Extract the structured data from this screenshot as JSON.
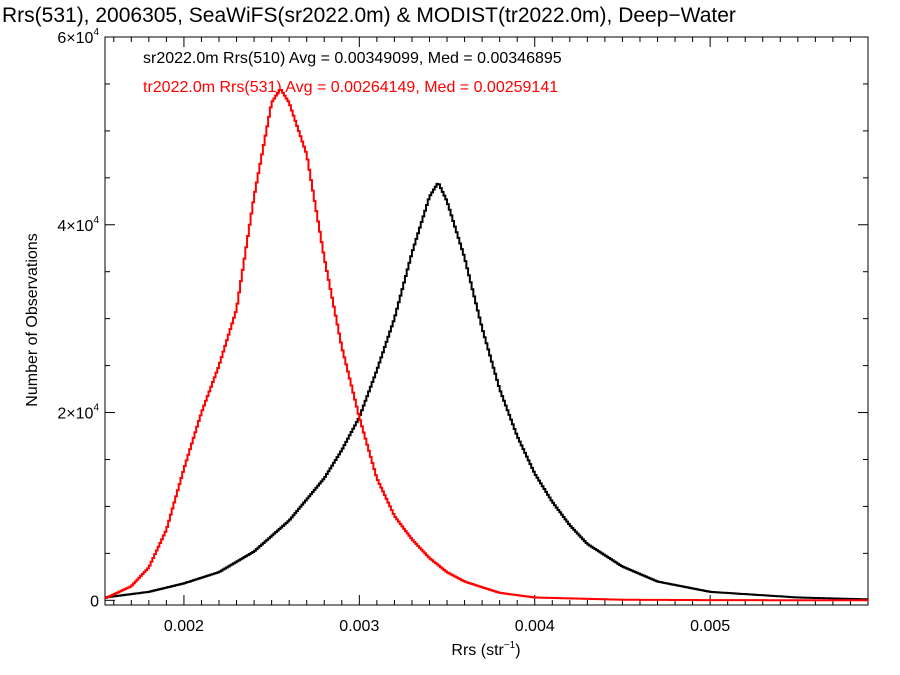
{
  "chart_data": {
    "type": "line",
    "style": "histogram-step",
    "title": "Rrs(531), 2006305, SeaWiFS(sr2022.0m) & MODIST(tr2022.0m), Deep−Water",
    "xlabel": "Rrs (str",
    "xlabel_sup": "−1",
    "xlabel_suffix": ")",
    "ylabel": "Number of Observations",
    "xlim": [
      0.00155,
      0.0059
    ],
    "ylim": [
      -500,
      60000
    ],
    "xticks": [
      {
        "v": 0.002,
        "label": "0.002"
      },
      {
        "v": 0.003,
        "label": "0.003"
      },
      {
        "v": 0.004,
        "label": "0.004"
      },
      {
        "v": 0.005,
        "label": "0.005"
      }
    ],
    "yticks": [
      {
        "v": 0,
        "label": "0",
        "sup": ""
      },
      {
        "v": 20000,
        "label": "2×10",
        "sup": "4"
      },
      {
        "v": 40000,
        "label": "4×10",
        "sup": "4"
      },
      {
        "v": 60000,
        "label": "6×10",
        "sup": "4"
      }
    ],
    "grid": false,
    "annotations": [
      {
        "text": "sr2022.0m Rrs(510) Avg = 0.00349099, Med = 0.00346895",
        "color": "#000000"
      },
      {
        "text": "tr2022.0m Rrs(531) Avg = 0.00264149, Med = 0.00259141",
        "color": "#ff0000"
      }
    ],
    "series": [
      {
        "color": "#000000",
        "points": [
          [
            0.00155,
            300
          ],
          [
            0.0018,
            900
          ],
          [
            0.002,
            1800
          ],
          [
            0.0022,
            3000
          ],
          [
            0.0024,
            5200
          ],
          [
            0.0026,
            8500
          ],
          [
            0.0028,
            13000
          ],
          [
            0.0029,
            16000
          ],
          [
            0.003,
            19500
          ],
          [
            0.0031,
            24500
          ],
          [
            0.0032,
            30000
          ],
          [
            0.0033,
            37000
          ],
          [
            0.0034,
            43000
          ],
          [
            0.00345,
            44500
          ],
          [
            0.0035,
            42500
          ],
          [
            0.0036,
            36500
          ],
          [
            0.0037,
            29000
          ],
          [
            0.0038,
            22500
          ],
          [
            0.0039,
            17500
          ],
          [
            0.004,
            13500
          ],
          [
            0.0041,
            10500
          ],
          [
            0.0042,
            8000
          ],
          [
            0.0043,
            6000
          ],
          [
            0.0045,
            3600
          ],
          [
            0.0047,
            2000
          ],
          [
            0.005,
            900
          ],
          [
            0.0055,
            300
          ],
          [
            0.0059,
            100
          ]
        ]
      },
      {
        "color": "#ff0000",
        "points": [
          [
            0.00155,
            200
          ],
          [
            0.0017,
            1500
          ],
          [
            0.0018,
            3500
          ],
          [
            0.0019,
            7500
          ],
          [
            0.002,
            14000
          ],
          [
            0.0021,
            20000
          ],
          [
            0.0022,
            25000
          ],
          [
            0.0023,
            31000
          ],
          [
            0.0024,
            43000
          ],
          [
            0.0025,
            53000
          ],
          [
            0.00255,
            54500
          ],
          [
            0.0026,
            53000
          ],
          [
            0.0027,
            47500
          ],
          [
            0.0028,
            36500
          ],
          [
            0.0029,
            27000
          ],
          [
            0.003,
            19500
          ],
          [
            0.0031,
            13000
          ],
          [
            0.0032,
            9000
          ],
          [
            0.0033,
            6500
          ],
          [
            0.0034,
            4500
          ],
          [
            0.0035,
            3000
          ],
          [
            0.0036,
            2000
          ],
          [
            0.0038,
            800
          ],
          [
            0.004,
            300
          ],
          [
            0.0045,
            60
          ],
          [
            0.005,
            20
          ],
          [
            0.0059,
            0
          ]
        ]
      }
    ]
  }
}
